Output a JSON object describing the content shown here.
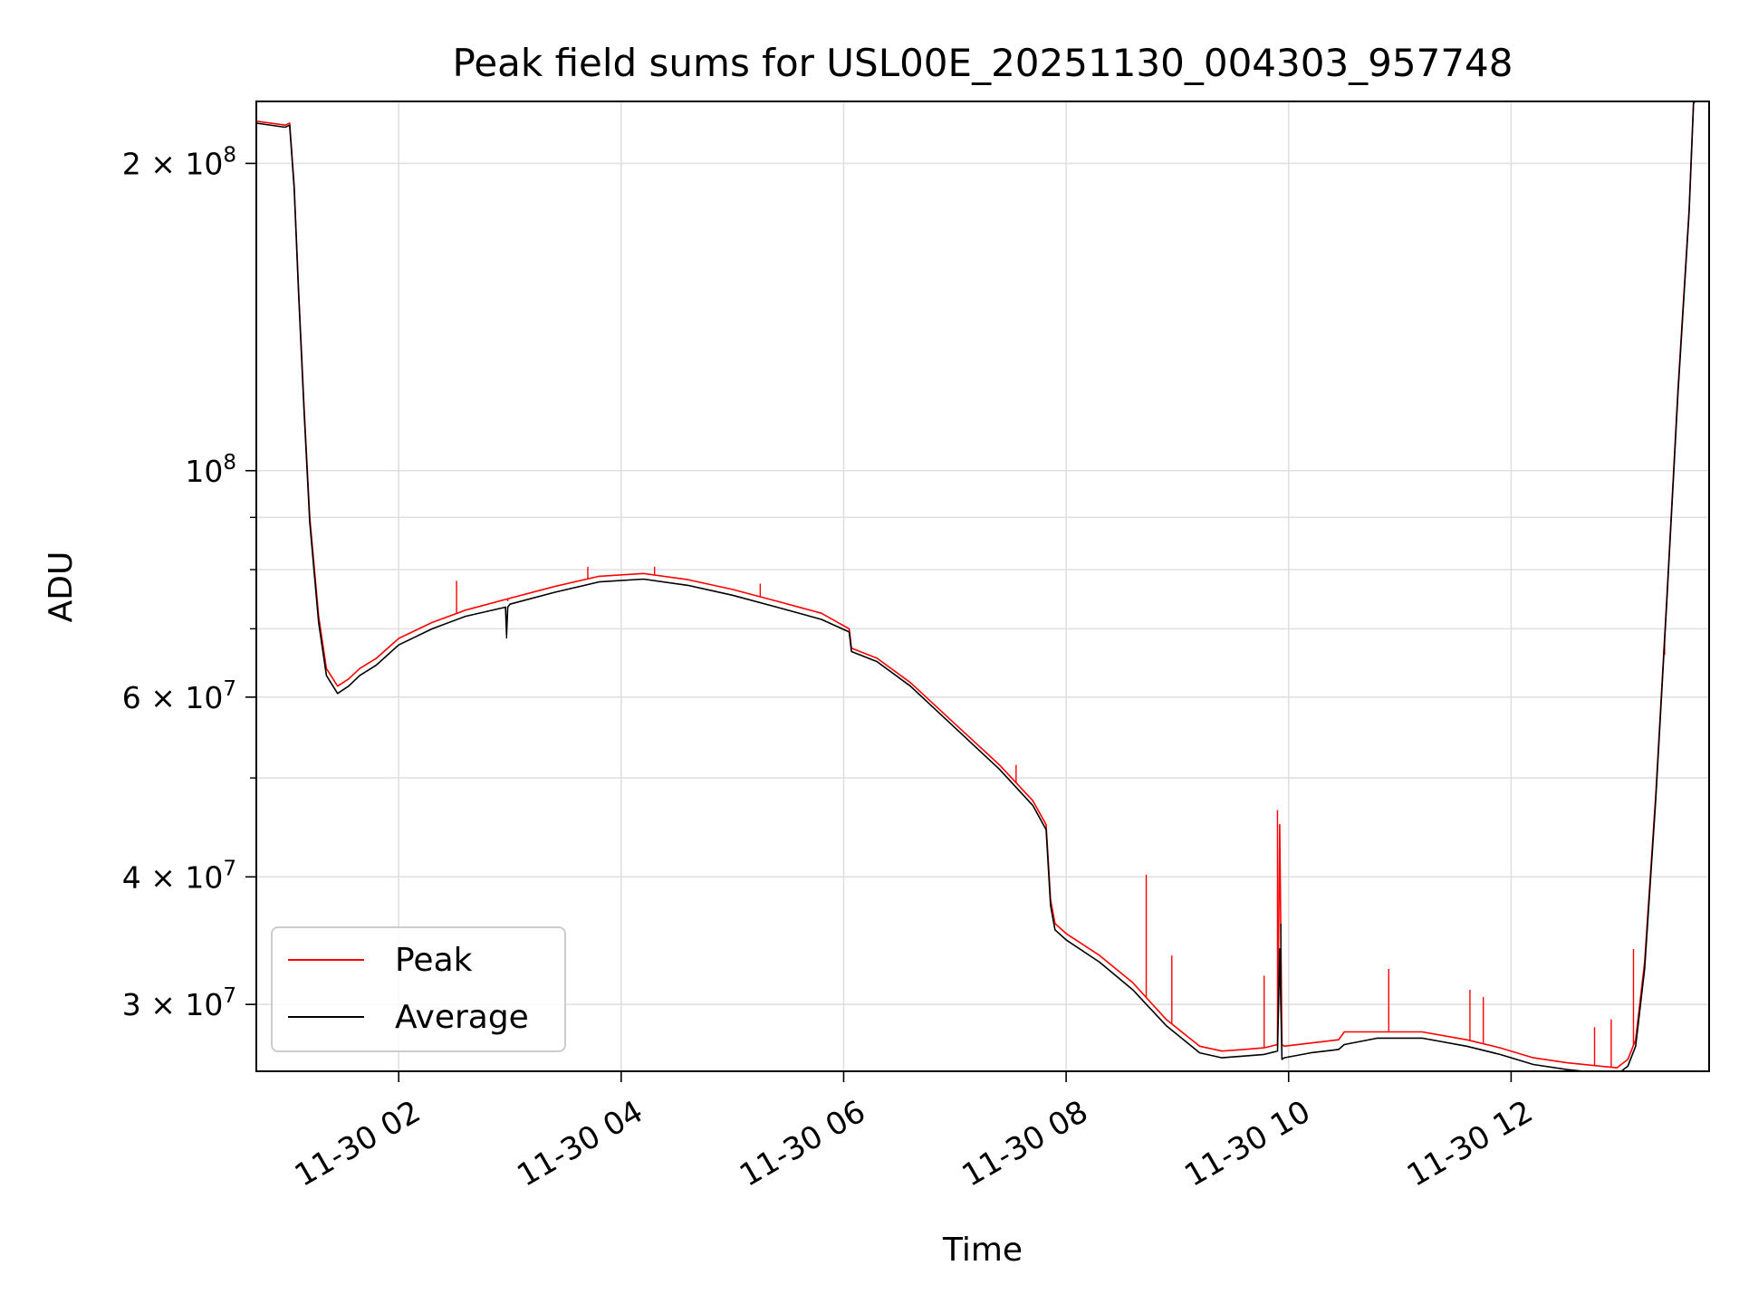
{
  "chart_data": {
    "type": "line",
    "title": "Peak field sums for USL00E_20251130_004303_957748",
    "xlabel": "Time",
    "ylabel": "ADU",
    "xscale": "time",
    "yscale": "log",
    "xlim": [
      0.72,
      13.78
    ],
    "ylim": [
      25800000,
      230000000
    ],
    "grid": true,
    "legend_loc": "lower left",
    "x_unit": "hours after 2025-11-30 00:00",
    "x_ticks": [
      {
        "value": 2,
        "label": "11-30 02"
      },
      {
        "value": 4,
        "label": "11-30 04"
      },
      {
        "value": 6,
        "label": "11-30 06"
      },
      {
        "value": 8,
        "label": "11-30 08"
      },
      {
        "value": 10,
        "label": "11-30 10"
      },
      {
        "value": 12,
        "label": "11-30 12"
      }
    ],
    "y_major_ticks": [
      {
        "value": 30000000,
        "label": "3 × 10⁷",
        "mant": "3",
        "exp": "7"
      },
      {
        "value": 40000000,
        "label": "4 × 10⁷",
        "mant": "4",
        "exp": "7"
      },
      {
        "value": 60000000,
        "label": "6 × 10⁷",
        "mant": "6",
        "exp": "7"
      },
      {
        "value": 100000000,
        "label": "10⁸",
        "mant": "",
        "exp": "8"
      },
      {
        "value": 200000000,
        "label": "2 × 10⁸",
        "mant": "2",
        "exp": "8"
      }
    ],
    "y_minor_ticks": [
      50000000,
      70000000,
      80000000,
      90000000
    ],
    "series": [
      {
        "name": "Peak",
        "color": "#ff0000",
        "x": [
          0.72,
          0.98,
          1.02,
          1.06,
          1.1,
          1.15,
          1.2,
          1.28,
          1.35,
          1.45,
          1.55,
          1.65,
          1.8,
          2.0,
          2.3,
          2.6,
          3.0,
          3.4,
          3.8,
          4.2,
          4.6,
          5.0,
          5.4,
          5.8,
          6.05,
          6.07,
          6.3,
          6.6,
          7.0,
          7.4,
          7.7,
          7.82,
          7.86,
          7.9,
          8.0,
          8.3,
          8.6,
          8.9,
          9.2,
          9.4,
          9.6,
          9.78,
          9.9,
          9.92,
          9.94,
          9.96,
          10.2,
          10.45,
          10.5,
          10.8,
          11.2,
          11.6,
          11.9,
          12.2,
          12.5,
          12.8,
          12.95,
          13.05,
          13.12,
          13.2,
          13.3,
          13.4,
          13.5,
          13.6,
          13.64,
          13.78
        ],
        "y": [
          220000000,
          218000000,
          219000000,
          190000000,
          150000000,
          115000000,
          90000000,
          72000000,
          64000000,
          61500000,
          62500000,
          64000000,
          65500000,
          68500000,
          71000000,
          73000000,
          75000000,
          77000000,
          78800000,
          79300000,
          78200000,
          76500000,
          74500000,
          72500000,
          70000000,
          67000000,
          65500000,
          62000000,
          56500000,
          51500000,
          47500000,
          45000000,
          38000000,
          36000000,
          35200000,
          33500000,
          31500000,
          29000000,
          27300000,
          27000000,
          27100000,
          27200000,
          27400000,
          45000000,
          27400000,
          27300000,
          27500000,
          27700000,
          28200000,
          28200000,
          28200000,
          27700000,
          27200000,
          26600000,
          26300000,
          26100000,
          26000000,
          26500000,
          27700000,
          33000000,
          48000000,
          75000000,
          120000000,
          180000000,
          230000000,
          240000000
        ],
        "spikes": [
          {
            "x": 2.52,
            "y": 78000000
          },
          {
            "x": 2.98,
            "y": 74500000
          },
          {
            "x": 3.7,
            "y": 80500000
          },
          {
            "x": 4.3,
            "y": 80500000
          },
          {
            "x": 5.25,
            "y": 77500000
          },
          {
            "x": 7.55,
            "y": 51500000
          },
          {
            "x": 8.72,
            "y": 40200000
          },
          {
            "x": 8.95,
            "y": 33500000
          },
          {
            "x": 9.78,
            "y": 32000000
          },
          {
            "x": 9.9,
            "y": 46500000
          },
          {
            "x": 10.9,
            "y": 32500000
          },
          {
            "x": 11.63,
            "y": 31000000
          },
          {
            "x": 11.75,
            "y": 30500000
          },
          {
            "x": 12.75,
            "y": 28500000
          },
          {
            "x": 12.9,
            "y": 29000000
          },
          {
            "x": 13.1,
            "y": 34000000
          },
          {
            "x": 13.38,
            "y": 66000000
          }
        ]
      },
      {
        "name": "Average",
        "color": "#000000",
        "x": [
          0.72,
          0.98,
          1.02,
          1.06,
          1.1,
          1.15,
          1.2,
          1.28,
          1.35,
          1.45,
          1.55,
          1.65,
          1.8,
          2.0,
          2.3,
          2.6,
          2.96,
          2.97,
          2.98,
          3.0,
          3.4,
          3.8,
          4.2,
          4.6,
          5.0,
          5.4,
          5.8,
          6.05,
          6.07,
          6.3,
          6.6,
          7.0,
          7.4,
          7.7,
          7.82,
          7.86,
          7.9,
          8.0,
          8.3,
          8.6,
          8.9,
          9.2,
          9.4,
          9.6,
          9.78,
          9.9,
          9.92,
          9.94,
          9.96,
          10.2,
          10.45,
          10.5,
          10.8,
          11.2,
          11.6,
          11.9,
          12.2,
          12.5,
          12.8,
          12.95,
          13.05,
          13.12,
          13.2,
          13.3,
          13.4,
          13.5,
          13.6,
          13.64,
          13.78
        ],
        "y": [
          219000000,
          217000000,
          218000000,
          189000000,
          149000000,
          114000000,
          89000000,
          71000000,
          63000000,
          60500000,
          61500000,
          63000000,
          64500000,
          67500000,
          70000000,
          72000000,
          73500000,
          69000000,
          73500000,
          74000000,
          76000000,
          77800000,
          78300000,
          77200000,
          75500000,
          73500000,
          71500000,
          69500000,
          66500000,
          65000000,
          61500000,
          56000000,
          51000000,
          47000000,
          44500000,
          37500000,
          35500000,
          34700000,
          33000000,
          31000000,
          28600000,
          26900000,
          26600000,
          26700000,
          26800000,
          27000000,
          34000000,
          26500000,
          26600000,
          26900000,
          27100000,
          27400000,
          27800000,
          27800000,
          27300000,
          26800000,
          26200000,
          25900000,
          25700000,
          25600000,
          26100000,
          27300000,
          32500000,
          47500000,
          74500000,
          119000000,
          179000000,
          229000000,
          240000000
        ],
        "spikes": [
          {
            "x": 2.97,
            "y": 68500000
          },
          {
            "x": 9.93,
            "y": 36000000
          }
        ]
      }
    ]
  }
}
